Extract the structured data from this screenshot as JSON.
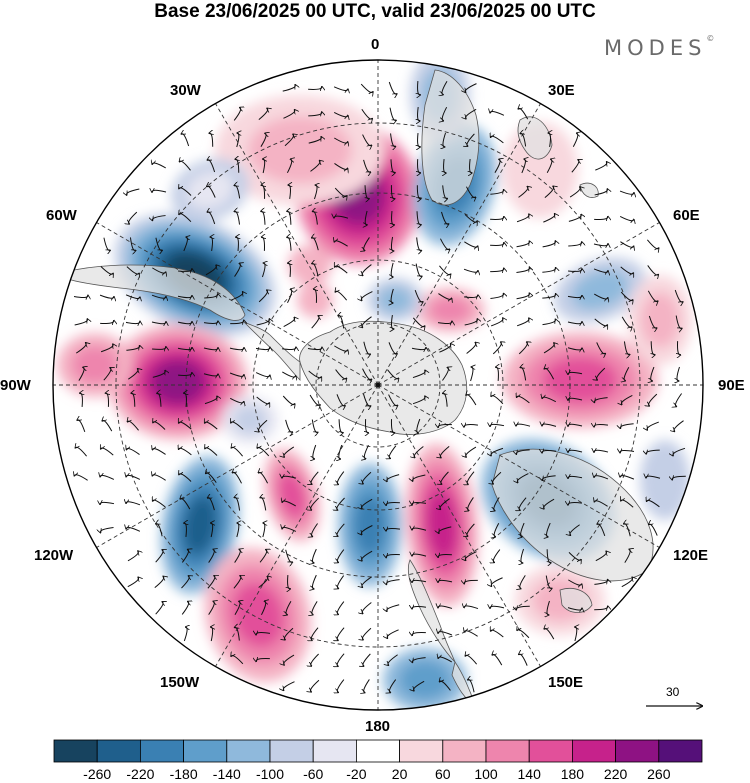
{
  "title": "Base 23/06/2025 00 UTC, valid 23/06/2025 00 UTC",
  "brand": "MODES",
  "brand_mark": "©",
  "longitude_labels": {
    "lon_0": "0",
    "lon_30e": "30E",
    "lon_60e": "60E",
    "lon_90e": "90E",
    "lon_120e": "120E",
    "lon_150e": "150E",
    "lon_180": "180",
    "lon_150w": "150W",
    "lon_120w": "120W",
    "lon_90w": "90W",
    "lon_60w": "60W",
    "lon_30w": "30W"
  },
  "vector_scale": {
    "label": "30",
    "icon": "arrow-right-icon"
  },
  "colorbar": {
    "labels": [
      "-260",
      "-220",
      "-180",
      "-140",
      "-100",
      "-60",
      "-20",
      "20",
      "60",
      "100",
      "140",
      "180",
      "220",
      "260"
    ],
    "colors": [
      "#17435f",
      "#1f5f8c",
      "#3a80b3",
      "#5f9ecb",
      "#8fb9dc",
      "#c4cfe6",
      "#e6e6f2",
      "#ffffff",
      "#f8d8de",
      "#f4b3c4",
      "#ee85ad",
      "#e2509a",
      "#c6228b",
      "#8e1283",
      "#551079"
    ]
  },
  "map_colors": {
    "ocean_background": "#ffffff",
    "land": "#e2e2e2",
    "coastline": "#555555",
    "grid": "#333333",
    "vectors": "#111111"
  }
}
